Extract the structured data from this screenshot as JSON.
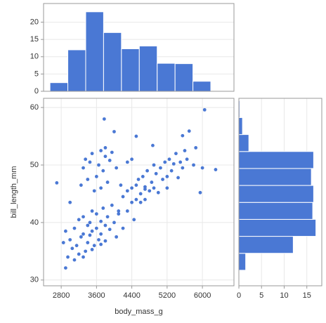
{
  "chart_data": [
    {
      "type": "histogram",
      "orientation": "vertical",
      "bins": [
        2545,
        2950,
        3355,
        3760,
        4165,
        4570,
        4975,
        5380,
        5785,
        6190
      ],
      "values": [
        2.5,
        12,
        23,
        17,
        12.3,
        13.1,
        8.1,
        8,
        2.9
      ],
      "color": "#4a78d4",
      "xlim": [
        2400,
        6715
      ],
      "ylim": [
        0,
        25.4
      ],
      "yticks": [
        0,
        5,
        10,
        15,
        20
      ],
      "grid": true
    },
    {
      "type": "scatter",
      "xlabel": "body_mass_g",
      "ylabel": "bill_length_mm",
      "color": "#4a78d4",
      "x": [
        2850,
        2900,
        2950,
        3000,
        3050,
        3100,
        3150,
        3200,
        3200,
        3250,
        3300,
        3300,
        3350,
        3400,
        3400,
        3450,
        3450,
        3500,
        3500,
        3550,
        3600,
        3600,
        3650,
        3700,
        3700,
        3750,
        3800,
        3800,
        3850,
        3900,
        3950,
        4000,
        4050,
        4100,
        4200,
        4300,
        4450,
        4600,
        4700,
        3100,
        2900,
        3300,
        3500,
        3700,
        2700,
        3000,
        3250,
        3300,
        3350,
        3400,
        3450,
        3500,
        3550,
        3600,
        3650,
        3700,
        3700,
        3750,
        3800,
        3800,
        3850,
        3900,
        3950,
        4050,
        4150,
        4300,
        4400,
        3775,
        4000,
        4500,
        4100,
        4200,
        4300,
        4400,
        4400,
        4500,
        4500,
        4550,
        4600,
        4650,
        4700,
        4700,
        4750,
        4800,
        4850,
        4900,
        4900,
        4950,
        5000,
        5050,
        5100,
        5150,
        5200,
        5200,
        5250,
        5300,
        5350,
        5400,
        5450,
        5500,
        5550,
        5600,
        5650,
        5700,
        5800,
        5850,
        5950,
        6000,
        6050,
        6300,
        5550,
        4875
      ],
      "values": [
        36.5,
        38.5,
        34.0,
        37.0,
        35.5,
        39.0,
        36.0,
        40.5,
        34.5,
        37.5,
        38.0,
        41.0,
        35.0,
        39.5,
        36.5,
        40.0,
        37.8,
        38.5,
        42.0,
        36.0,
        39.0,
        41.5,
        37.0,
        40.2,
        38.0,
        42.5,
        39.5,
        36.8,
        41.0,
        38.8,
        43.0,
        40.0,
        37.5,
        41.5,
        39.0,
        42.0,
        40.5,
        43.5,
        45.8,
        33.5,
        32.1,
        34.0,
        35.3,
        36.2,
        46.9,
        43.5,
        46.5,
        49.5,
        51.0,
        47.5,
        50.5,
        52.0,
        45.5,
        48.0,
        50.0,
        46.0,
        52.5,
        49.0,
        51.5,
        53.0,
        47.0,
        50.8,
        52.2,
        49.5,
        46.5,
        50.5,
        51.0,
        58.0,
        55.8,
        55.0,
        42.0,
        44.5,
        45.5,
        46.0,
        43.5,
        46.5,
        44.0,
        47.5,
        45.0,
        48.0,
        46.2,
        44.0,
        49.0,
        45.5,
        47.0,
        50.0,
        46.0,
        48.5,
        45.2,
        49.5,
        47.5,
        50.5,
        48.0,
        46.0,
        51.0,
        49.0,
        50.2,
        52.0,
        47.8,
        50.5,
        49.5,
        52.5,
        51.0,
        55.9,
        50.0,
        53.0,
        45.2,
        49.5,
        59.6,
        49.2,
        55.1,
        53.4
      ],
      "xlim": [
        2400,
        6715
      ],
      "xticks": [
        2800,
        3600,
        4400,
        5200,
        6000
      ],
      "ylim": [
        29,
        61.6
      ],
      "yticks": [
        30,
        40,
        50,
        60
      ],
      "grid": true
    },
    {
      "type": "histogram",
      "orientation": "horizontal",
      "bins": [
        31.7,
        34.65,
        37.6,
        40.55,
        43.5,
        46.45,
        49.4,
        52.35,
        55.3,
        58.25,
        61.2
      ],
      "values": [
        1.5,
        12,
        17,
        16.3,
        16.5,
        16,
        16.5,
        2.2,
        0.8,
        0.2
      ],
      "color": "#4a78d4",
      "ylim": [
        29,
        61.6
      ],
      "xlim": [
        0,
        18.3
      ],
      "xticks": [
        0,
        5,
        10,
        15
      ],
      "grid": true
    }
  ]
}
